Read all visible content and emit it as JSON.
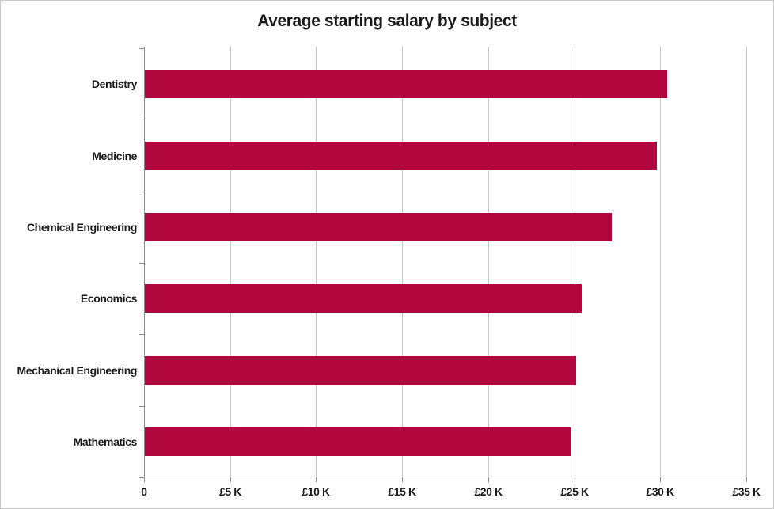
{
  "chart_data": {
    "type": "bar",
    "orientation": "horizontal",
    "title": "Average starting salary by subject",
    "xlabel": "",
    "ylabel": "",
    "categories": [
      "Dentistry",
      "Medicine",
      "Chemical Engineering",
      "Economics",
      "Mechanical Engineering",
      "Mathematics"
    ],
    "values": [
      30300,
      29700,
      27100,
      25350,
      25050,
      24700
    ],
    "values_unit": "GBP",
    "xlim": [
      0,
      35000
    ],
    "x_tick_interval": 5000,
    "x_tick_labels": [
      "0",
      "£5 K",
      "£10 K",
      "£15 K",
      "£20 K",
      "£25 K",
      "£30 K",
      "£35 K"
    ],
    "grid": "vertical-only",
    "legend": "none",
    "colors": {
      "bar": "#B2063E",
      "gridline": "#C6C6C6",
      "axis": "#8A8A8A",
      "text": "#1A1A1A",
      "border": "#C9C9C9"
    }
  }
}
